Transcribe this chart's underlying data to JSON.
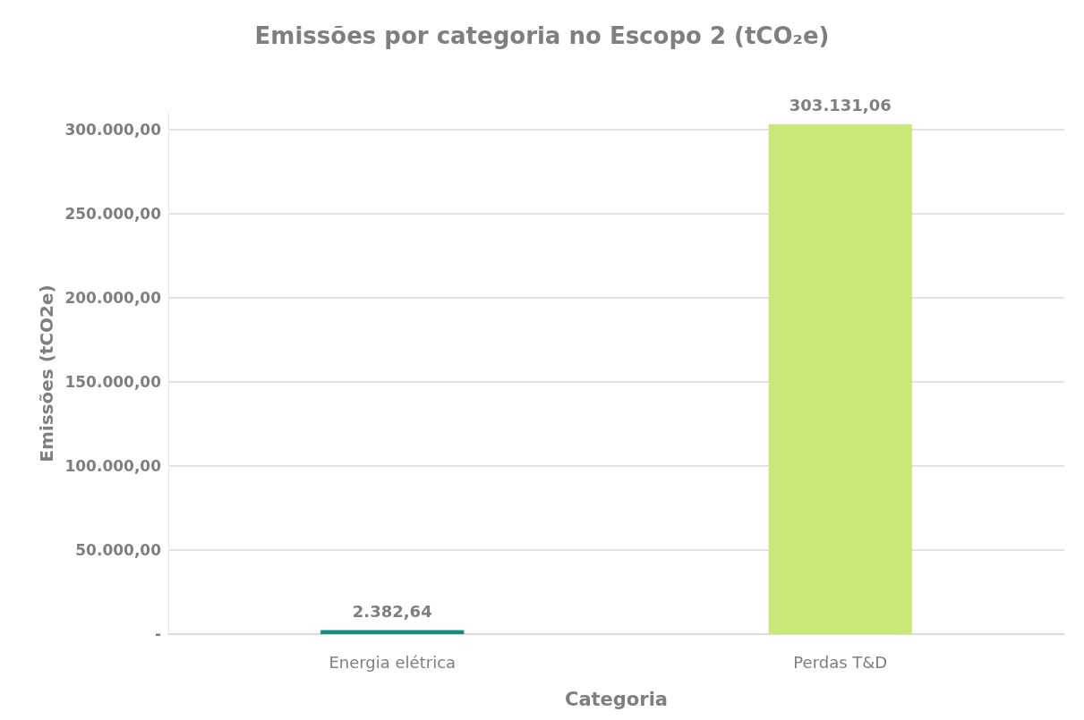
{
  "chart_data": {
    "type": "bar",
    "title": "Emissões por categoria no Escopo 2 (tCO₂e)",
    "xlabel": "Categoria",
    "ylabel": "Emissões (tCO2e)",
    "categories": [
      "Energia elétrica",
      "Perdas T&D"
    ],
    "values": [
      2382.64,
      303131.06
    ],
    "colors": [
      "#1a8a7c",
      "#c8e87a"
    ],
    "value_labels": [
      "2.382,64",
      "303.131,06"
    ],
    "ylim": [
      0,
      310000
    ],
    "yticks": [
      {
        "value": 0,
        "label": "-"
      },
      {
        "value": 50000,
        "label": "50.000,00"
      },
      {
        "value": 100000,
        "label": "100.000,00"
      },
      {
        "value": 150000,
        "label": "150.000,00"
      },
      {
        "value": 200000,
        "label": "200.000,00"
      },
      {
        "value": 250000,
        "label": "250.000,00"
      },
      {
        "value": 300000,
        "label": "300.000,00"
      }
    ],
    "grid": "y"
  }
}
